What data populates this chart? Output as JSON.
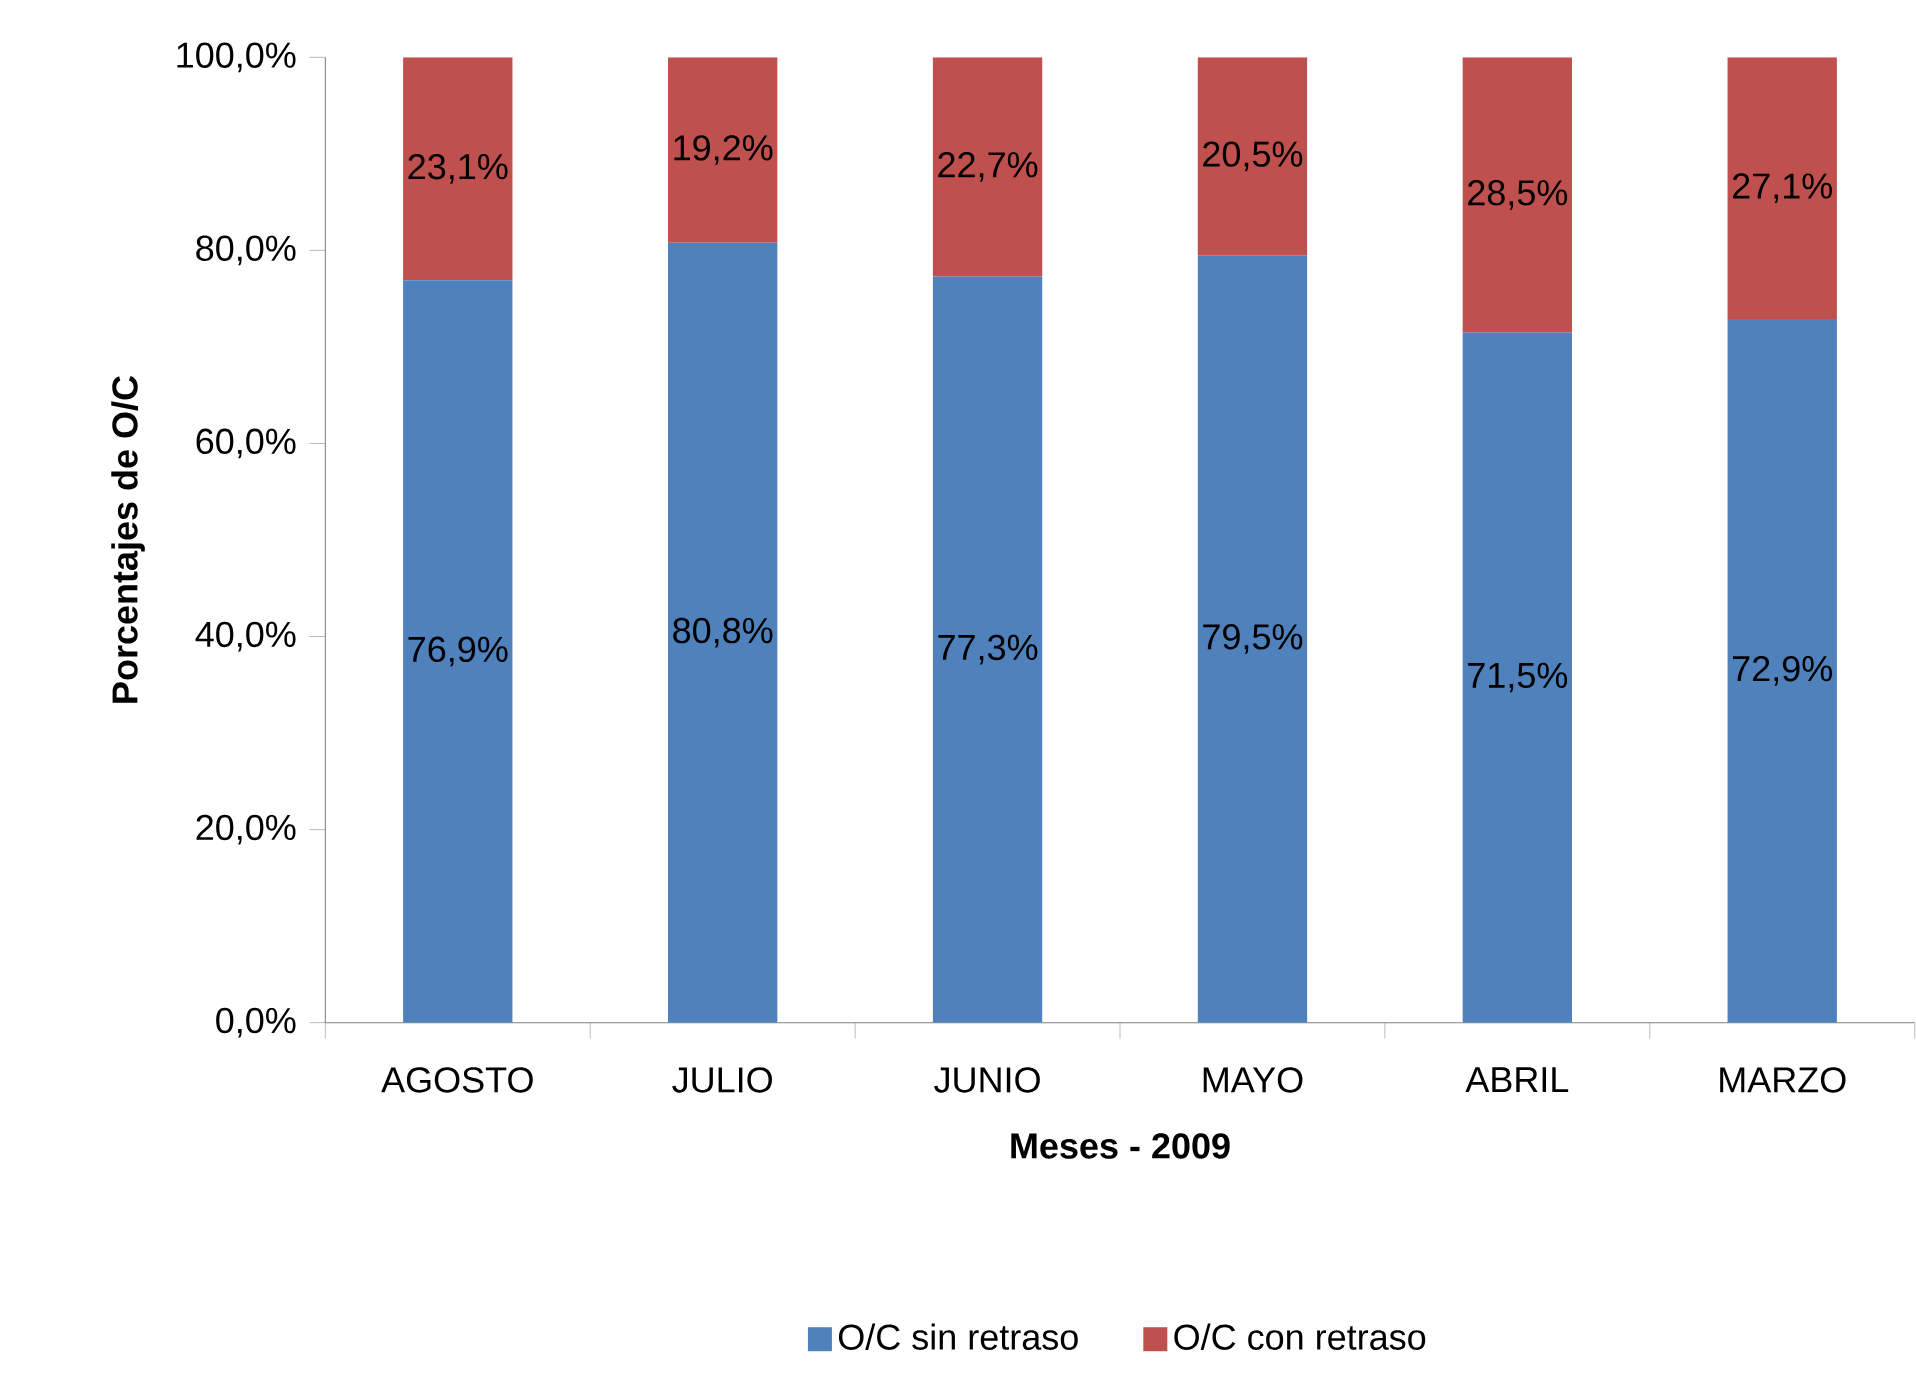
{
  "chart_data": {
    "type": "bar",
    "stacked": true,
    "xlabel": "Meses - 2009",
    "ylabel": "Porcentajes de O/C",
    "categories": [
      "AGOSTO",
      "JULIO",
      "JUNIO",
      "MAYO",
      "ABRIL",
      "MARZO"
    ],
    "series": [
      {
        "name": "O/C sin retraso",
        "color": "#4f81bd",
        "values": [
          76.9,
          80.8,
          77.3,
          79.5,
          71.5,
          72.9
        ],
        "value_labels": [
          "76,9%",
          "80,8%",
          "77,3%",
          "79,5%",
          "71,5%",
          "72,9%"
        ]
      },
      {
        "name": "O/C con retraso",
        "color": "#c0504d",
        "values": [
          23.1,
          19.2,
          22.7,
          20.5,
          28.5,
          27.1
        ],
        "value_labels": [
          "23,1%",
          "19,2%",
          "22,7%",
          "20,5%",
          "28,5%",
          "27,1%"
        ]
      }
    ],
    "ylim": [
      0,
      100
    ],
    "yticks": [
      {
        "value": 0,
        "label": "0,0%"
      },
      {
        "value": 20,
        "label": "20,0%"
      },
      {
        "value": 40,
        "label": "40,0%"
      },
      {
        "value": 60,
        "label": "60,0%"
      },
      {
        "value": 80,
        "label": "80,0%"
      },
      {
        "value": 100,
        "label": "100,0%"
      }
    ],
    "legend": "bottom",
    "grid": false
  }
}
